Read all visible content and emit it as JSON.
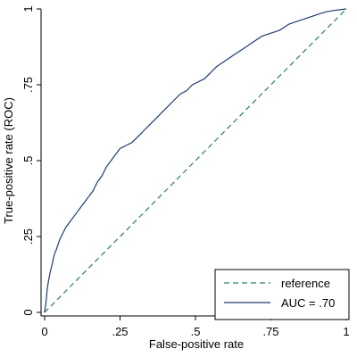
{
  "chart_data": {
    "type": "line",
    "xlabel": "False-positive rate",
    "ylabel": "True-positive rate (ROC)",
    "xlim": [
      0,
      1
    ],
    "ylim": [
      0,
      1
    ],
    "x_ticks": [
      0,
      0.25,
      0.5,
      0.75,
      1
    ],
    "y_ticks": [
      0,
      0.25,
      0.5,
      0.75,
      1
    ],
    "x_tick_labels": [
      "0",
      ".25",
      ".5",
      ".75",
      "1"
    ],
    "y_tick_labels": [
      "0",
      ".25",
      ".5",
      ".75",
      "1"
    ],
    "grid": false,
    "legend_position": "bottom-right",
    "series": [
      {
        "name": "reference",
        "style": "dashed",
        "color": "#2e7d5b",
        "x": [
          0,
          1
        ],
        "y": [
          0,
          1
        ]
      },
      {
        "name": "AUC = .70",
        "style": "solid",
        "color": "#1f3b70",
        "x": [
          0,
          0.004,
          0.008,
          0.012,
          0.018,
          0.025,
          0.032,
          0.04,
          0.05,
          0.06,
          0.07,
          0.085,
          0.1,
          0.115,
          0.13,
          0.145,
          0.16,
          0.175,
          0.19,
          0.205,
          0.22,
          0.235,
          0.25,
          0.27,
          0.29,
          0.31,
          0.33,
          0.35,
          0.37,
          0.39,
          0.41,
          0.43,
          0.45,
          0.47,
          0.49,
          0.51,
          0.53,
          0.55,
          0.57,
          0.6,
          0.63,
          0.66,
          0.69,
          0.72,
          0.75,
          0.78,
          0.81,
          0.84,
          0.87,
          0.9,
          0.93,
          0.96,
          1
        ],
        "y": [
          0,
          0.03,
          0.07,
          0.1,
          0.13,
          0.16,
          0.19,
          0.21,
          0.24,
          0.26,
          0.28,
          0.3,
          0.32,
          0.34,
          0.36,
          0.38,
          0.4,
          0.43,
          0.45,
          0.48,
          0.5,
          0.52,
          0.54,
          0.55,
          0.56,
          0.58,
          0.6,
          0.62,
          0.64,
          0.66,
          0.68,
          0.7,
          0.72,
          0.73,
          0.75,
          0.76,
          0.77,
          0.79,
          0.81,
          0.83,
          0.85,
          0.87,
          0.89,
          0.91,
          0.92,
          0.93,
          0.95,
          0.96,
          0.97,
          0.98,
          0.99,
          0.995,
          1
        ]
      }
    ]
  }
}
